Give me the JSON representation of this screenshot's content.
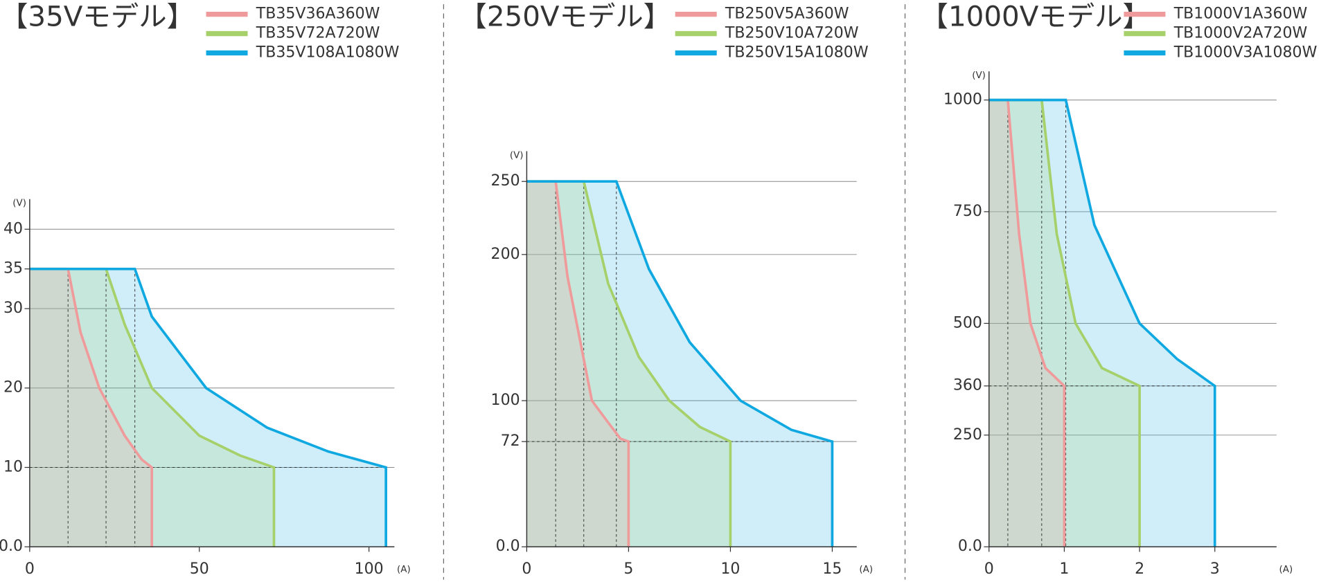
{
  "chart_data": [
    {
      "type": "line",
      "title": "【35Vモデル】",
      "x_label": "(A)",
      "y_label": "(V)",
      "xlim": [
        0,
        107.5
      ],
      "ylim": [
        0,
        43.8
      ],
      "xticks": [
        0,
        50,
        100
      ],
      "yticks": [
        {
          "value": 0,
          "label": "0.0"
        },
        10,
        20,
        30,
        35,
        40
      ],
      "grid": true,
      "series": [
        {
          "name": "TB35V36A360W",
          "color": "#f09b9b",
          "x": [
            0,
            11.3,
            15,
            20.5,
            28,
            33,
            36,
            36
          ],
          "values": [
            35,
            35,
            27,
            20,
            14,
            11,
            10,
            0
          ]
        },
        {
          "name": "TB35V72A720W",
          "color": "#a6d06a",
          "x": [
            0,
            22.5,
            28,
            36,
            50,
            62,
            72,
            72
          ],
          "values": [
            35,
            35,
            28,
            20,
            14,
            11.5,
            10,
            0
          ]
        },
        {
          "name": "TB35V108A1080W",
          "color": "#0fa8e0",
          "x": [
            0,
            31,
            36,
            52,
            70,
            88,
            105,
            105
          ],
          "values": [
            35,
            35,
            29,
            20,
            15,
            12,
            10,
            0
          ]
        }
      ]
    },
    {
      "type": "line",
      "title": "【250Vモデル】",
      "x_label": "(A)",
      "y_label": "(V)",
      "xlim": [
        0,
        16.2
      ],
      "ylim": [
        0,
        270.7
      ],
      "xticks": [
        0,
        5,
        10,
        15
      ],
      "yticks": [
        {
          "value": 0,
          "label": "0.0"
        },
        72,
        100,
        200,
        250
      ],
      "grid": true,
      "series": [
        {
          "name": "TB250V5A360W",
          "color": "#f09b9b",
          "x": [
            0,
            1.42,
            2,
            3.2,
            4,
            4.6,
            5,
            5
          ],
          "values": [
            250,
            250,
            185,
            100,
            85,
            74,
            72,
            0
          ]
        },
        {
          "name": "TB250V10A720W",
          "color": "#a6d06a",
          "x": [
            0,
            2.8,
            4,
            5.5,
            7,
            8.5,
            10,
            10
          ],
          "values": [
            250,
            250,
            180,
            130,
            100,
            82,
            72,
            0
          ]
        },
        {
          "name": "TB250V15A1080W",
          "color": "#0fa8e0",
          "x": [
            0,
            4.4,
            6,
            8,
            10.5,
            13,
            15,
            15
          ],
          "values": [
            250,
            250,
            190,
            140,
            100,
            80,
            72,
            0
          ]
        }
      ]
    },
    {
      "type": "line",
      "title": "【1000Vモデル】",
      "x_label": "(A)",
      "y_label": "(V)",
      "xlim": [
        0,
        3.82
      ],
      "ylim": [
        0,
        1064
      ],
      "xticks": [
        0,
        1,
        2,
        3
      ],
      "yticks": [
        {
          "value": 0,
          "label": "0.0"
        },
        250,
        360,
        500,
        750,
        1000
      ],
      "grid": true,
      "series": [
        {
          "name": "TB1000V1A360W",
          "color": "#f09b9b",
          "x": [
            0,
            0.25,
            0.4,
            0.55,
            0.75,
            1,
            1
          ],
          "values": [
            1000,
            1000,
            700,
            500,
            400,
            360,
            0
          ]
        },
        {
          "name": "TB1000V2A720W",
          "color": "#a6d06a",
          "x": [
            0,
            0.7,
            0.9,
            1.15,
            1.5,
            2,
            2
          ],
          "values": [
            1000,
            1000,
            700,
            500,
            400,
            360,
            0
          ]
        },
        {
          "name": "TB1000V3A1080W",
          "color": "#0fa8e0",
          "x": [
            0,
            1.02,
            1.4,
            2,
            2.5,
            3,
            3
          ],
          "values": [
            1000,
            1000,
            720,
            500,
            420,
            360,
            0
          ]
        }
      ]
    }
  ]
}
